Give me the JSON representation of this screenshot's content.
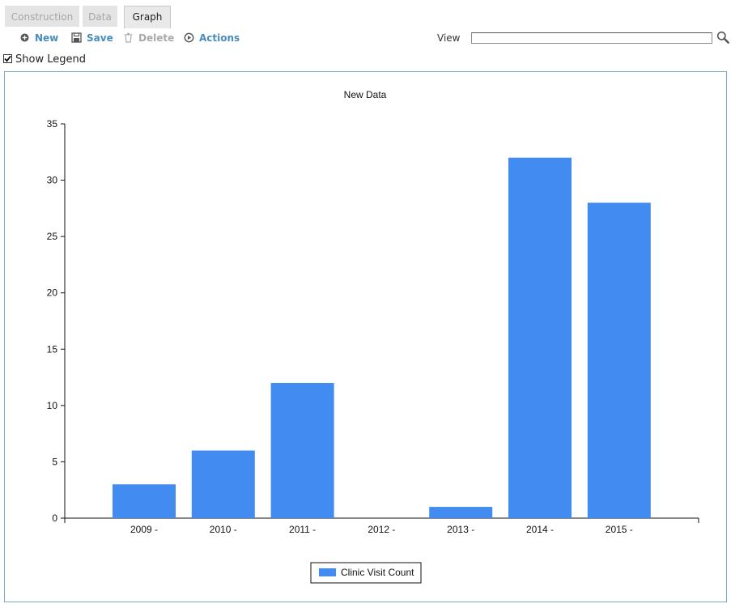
{
  "tabs": [
    {
      "label": "Construction",
      "state": "inactive"
    },
    {
      "label": "Data",
      "state": "inactive"
    },
    {
      "label": "Graph",
      "state": "active"
    }
  ],
  "toolbar": {
    "new_label": "New",
    "save_label": "Save",
    "delete_label": "Delete",
    "actions_label": "Actions",
    "view_label": "View",
    "view_value": ""
  },
  "show_legend": {
    "label": "Show Legend",
    "checked": true
  },
  "colors": {
    "bar": "#428bf0",
    "accent": "#4a8dbd",
    "frame_border": "#7aa7bd"
  },
  "chart_data": {
    "type": "bar",
    "title": "New Data",
    "categories": [
      "2009 -",
      "2010 -",
      "2011 -",
      "2012 -",
      "2013 -",
      "2014 -",
      "2015 -"
    ],
    "series": [
      {
        "name": "Clinic Visit Count",
        "values": [
          3,
          6,
          12,
          0,
          1,
          32,
          28
        ]
      }
    ],
    "yticks": [
      "0",
      "5",
      "10",
      "15",
      "20",
      "25",
      "30",
      "35"
    ],
    "ylim": [
      0,
      35
    ],
    "xlabel": "",
    "ylabel": "",
    "grid": false,
    "legend": "bottom-center"
  }
}
